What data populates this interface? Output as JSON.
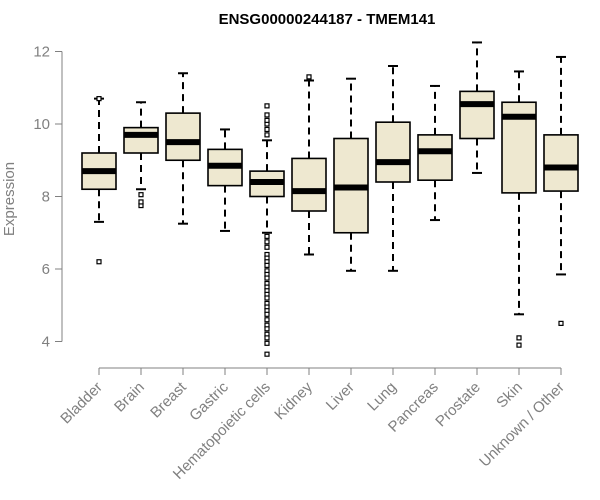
{
  "chart_data": {
    "type": "boxplot",
    "title": "ENSG00000244187 - TMEM141",
    "xlabel": "",
    "ylabel": "Expression",
    "ylim": [
      3.5,
      12.5
    ],
    "yticks": [
      4,
      6,
      8,
      10,
      12
    ],
    "grid": false,
    "box_fill": "#EEE8D0",
    "box_stroke": "#000000",
    "median_color": "#000000",
    "axis_color": "#808080",
    "categories": [
      "Bladder",
      "Brain",
      "Breast",
      "Gastric",
      "Hematopoietic cells",
      "Kidney",
      "Liver",
      "Lung",
      "Pancreas",
      "Prostate",
      "Skin",
      "Unknown / Other"
    ],
    "series": [
      {
        "name": "Bladder",
        "whisker_low": 7.3,
        "q1": 8.2,
        "median": 8.7,
        "q3": 9.2,
        "whisker_high": 10.7,
        "outliers": [
          6.2,
          10.7
        ]
      },
      {
        "name": "Brain",
        "whisker_low": 8.2,
        "q1": 9.2,
        "median": 9.7,
        "q3": 9.9,
        "whisker_high": 10.6,
        "outliers": [
          7.75,
          7.85,
          8.05
        ]
      },
      {
        "name": "Breast",
        "whisker_low": 7.25,
        "q1": 9.0,
        "median": 9.5,
        "q3": 10.3,
        "whisker_high": 11.4,
        "outliers": []
      },
      {
        "name": "Gastric",
        "whisker_low": 7.05,
        "q1": 8.3,
        "median": 8.85,
        "q3": 9.3,
        "whisker_high": 9.85,
        "outliers": []
      },
      {
        "name": "Hematopoietic cells",
        "whisker_low": 7.0,
        "q1": 8.0,
        "median": 8.4,
        "q3": 8.7,
        "whisker_high": 9.55,
        "outliers": [
          9.7,
          9.85,
          10.0,
          10.1,
          10.25,
          10.5,
          6.9,
          6.75,
          6.6,
          6.4,
          6.3,
          6.2,
          6.1,
          5.95,
          5.85,
          5.75,
          5.6,
          5.5,
          5.4,
          5.3,
          5.2,
          5.05,
          4.95,
          4.85,
          4.75,
          4.6,
          4.45,
          4.35,
          4.2,
          4.1,
          3.95,
          3.65
        ]
      },
      {
        "name": "Kidney",
        "whisker_low": 6.4,
        "q1": 7.6,
        "median": 8.15,
        "q3": 9.05,
        "whisker_high": 11.2,
        "outliers": [
          11.3
        ]
      },
      {
        "name": "Liver",
        "whisker_low": 5.95,
        "q1": 7.0,
        "median": 8.25,
        "q3": 9.6,
        "whisker_high": 11.25,
        "outliers": []
      },
      {
        "name": "Lung",
        "whisker_low": 5.95,
        "q1": 8.4,
        "median": 8.95,
        "q3": 10.05,
        "whisker_high": 11.6,
        "outliers": []
      },
      {
        "name": "Pancreas",
        "whisker_low": 7.35,
        "q1": 8.45,
        "median": 9.25,
        "q3": 9.7,
        "whisker_high": 11.05,
        "outliers": []
      },
      {
        "name": "Prostate",
        "whisker_low": 8.65,
        "q1": 9.6,
        "median": 10.55,
        "q3": 10.9,
        "whisker_high": 12.25,
        "outliers": []
      },
      {
        "name": "Skin",
        "whisker_low": 4.75,
        "q1": 8.1,
        "median": 10.2,
        "q3": 10.6,
        "whisker_high": 11.45,
        "outliers": [
          4.1,
          3.9
        ]
      },
      {
        "name": "Unknown / Other",
        "whisker_low": 5.85,
        "q1": 8.15,
        "median": 8.8,
        "q3": 9.7,
        "whisker_high": 11.85,
        "outliers": [
          4.5
        ]
      }
    ]
  }
}
